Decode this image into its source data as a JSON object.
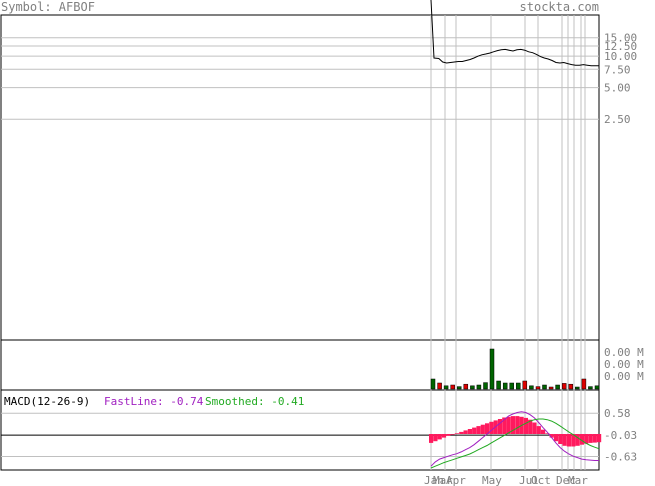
{
  "header": {
    "symbol_text": "Symbol: AFBOF",
    "site_text": "stockta.com"
  },
  "macd_header": {
    "title": "MACD(12-26-9)",
    "fast_text": "FastLine: -0.74",
    "smoothed_text": "Smoothed: -0.41"
  },
  "colors": {
    "price_line": "#000000",
    "grid": "#c0c0c0",
    "volume_up": "#006400",
    "volume_down": "#dd0000",
    "histogram": "#ff1a5e",
    "fast_line": "#a020c0",
    "smoothed_line": "#22aa22",
    "label_gray": "#808080"
  },
  "chart_data": [
    {
      "type": "line",
      "panel": "price",
      "scale": "log",
      "y_tick_labels": [
        "15.00",
        "12.50",
        "10.00",
        "7.50",
        "5.00",
        "2.50"
      ],
      "y_ticks": [
        15,
        12.5,
        10,
        7.5,
        5,
        2.5
      ],
      "x": [
        0,
        1,
        2,
        3,
        4,
        5,
        6,
        7,
        8,
        9,
        10,
        11,
        12,
        13,
        14,
        15,
        16,
        17,
        18,
        19,
        20,
        21,
        22,
        23,
        24,
        25,
        26,
        27,
        28,
        29,
        30,
        31,
        32,
        33,
        34,
        35,
        36,
        37,
        38,
        39,
        40,
        41,
        42,
        43
      ],
      "values": [
        20,
        9.6,
        9.5,
        8.8,
        8.6,
        8.7,
        8.8,
        8.9,
        8.9,
        9.1,
        9.3,
        9.6,
        10.0,
        10.3,
        10.5,
        10.7,
        11.0,
        11.3,
        11.5,
        11.6,
        11.4,
        11.2,
        11.5,
        11.6,
        11.4,
        11.0,
        10.8,
        10.4,
        9.9,
        9.6,
        9.4,
        9.1,
        8.7,
        8.6,
        8.7,
        8.5,
        8.3,
        8.2,
        8.2,
        8.3,
        8.2,
        8.1,
        8.1,
        8.1
      ]
    },
    {
      "type": "bar",
      "panel": "volume",
      "y_tick_labels": [
        "0.00 M",
        "0.00 M",
        "0.00 M"
      ],
      "bars": [
        {
          "v": 0.25,
          "up": true
        },
        {
          "v": 0.15,
          "up": false
        },
        {
          "v": 0.08,
          "up": true
        },
        {
          "v": 0.1,
          "up": false
        },
        {
          "v": 0.06,
          "up": true
        },
        {
          "v": 0.12,
          "up": false
        },
        {
          "v": 0.08,
          "up": true
        },
        {
          "v": 0.1,
          "up": true
        },
        {
          "v": 0.16,
          "up": true
        },
        {
          "v": 1.0,
          "up": true
        },
        {
          "v": 0.2,
          "up": true
        },
        {
          "v": 0.15,
          "up": true
        },
        {
          "v": 0.15,
          "up": true
        },
        {
          "v": 0.15,
          "up": true
        },
        {
          "v": 0.2,
          "up": false
        },
        {
          "v": 0.08,
          "up": true
        },
        {
          "v": 0.06,
          "up": false
        },
        {
          "v": 0.1,
          "up": true
        },
        {
          "v": 0.05,
          "up": false
        },
        {
          "v": 0.1,
          "up": true
        },
        {
          "v": 0.14,
          "up": false
        },
        {
          "v": 0.12,
          "up": false
        },
        {
          "v": 0.05,
          "up": true
        },
        {
          "v": 0.25,
          "up": false
        },
        {
          "v": 0.06,
          "up": true
        },
        {
          "v": 0.08,
          "up": true
        }
      ]
    },
    {
      "type": "line",
      "panel": "macd",
      "y_tick_labels": [
        "0.58",
        "-0.03",
        "-0.63"
      ],
      "y_ticks": [
        0.58,
        -0.03,
        -0.63
      ],
      "ylim": [
        -0.95,
        0.95
      ],
      "histogram": [
        -0.25,
        -0.2,
        -0.15,
        -0.1,
        -0.05,
        -0.02,
        0.02,
        0.06,
        0.1,
        0.14,
        0.18,
        0.22,
        0.26,
        0.3,
        0.34,
        0.38,
        0.42,
        0.46,
        0.48,
        0.5,
        0.5,
        0.48,
        0.45,
        0.4,
        0.32,
        0.22,
        0.12,
        0.02,
        -0.1,
        -0.2,
        -0.28,
        -0.33,
        -0.35,
        -0.35,
        -0.33,
        -0.3,
        -0.27,
        -0.25,
        -0.24,
        -0.23
      ],
      "fast_line": [
        -0.9,
        -0.78,
        -0.7,
        -0.66,
        -0.62,
        -0.58,
        -0.55,
        -0.5,
        -0.44,
        -0.38,
        -0.3,
        -0.2,
        -0.1,
        0.0,
        0.1,
        0.2,
        0.3,
        0.4,
        0.5,
        0.56,
        0.6,
        0.62,
        0.6,
        0.54,
        0.45,
        0.32,
        0.18,
        0.05,
        -0.1,
        -0.25,
        -0.38,
        -0.48,
        -0.56,
        -0.62,
        -0.66,
        -0.7,
        -0.72,
        -0.73,
        -0.74,
        -0.74
      ],
      "smoothed_line": [
        -0.95,
        -0.9,
        -0.85,
        -0.8,
        -0.76,
        -0.72,
        -0.68,
        -0.64,
        -0.6,
        -0.56,
        -0.5,
        -0.44,
        -0.38,
        -0.32,
        -0.25,
        -0.18,
        -0.11,
        -0.04,
        0.03,
        0.1,
        0.17,
        0.24,
        0.3,
        0.36,
        0.4,
        0.42,
        0.42,
        0.4,
        0.36,
        0.3,
        0.22,
        0.14,
        0.06,
        -0.02,
        -0.1,
        -0.18,
        -0.26,
        -0.32,
        -0.37,
        -0.41
      ]
    }
  ],
  "x_axis": {
    "month_labels": [
      "Jan",
      "Mar",
      "Apr",
      "May",
      "Jul",
      "Oct",
      "Dec",
      "Mar"
    ]
  }
}
